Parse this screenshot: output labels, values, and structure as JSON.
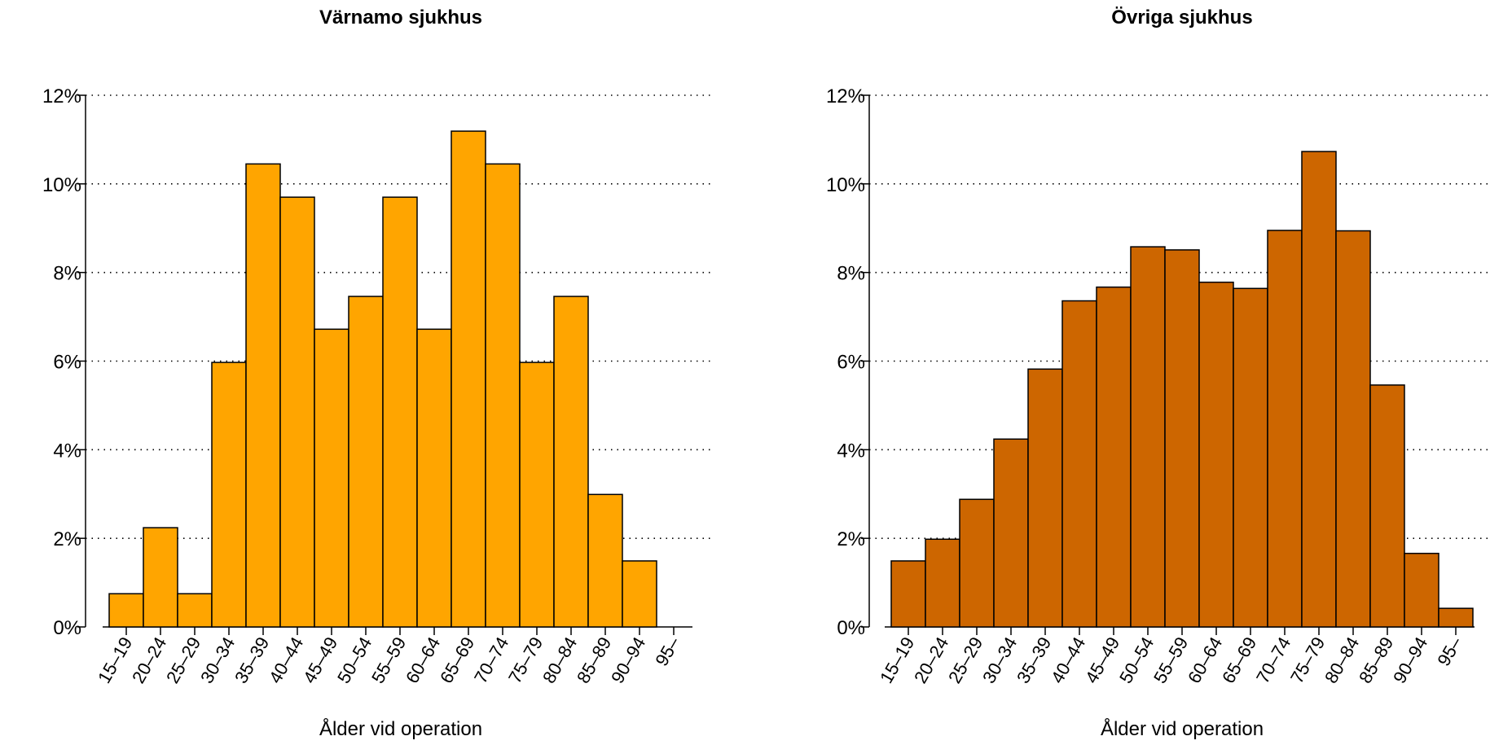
{
  "chart_data": [
    {
      "type": "bar",
      "title": "Värnamo sjukhus",
      "xlabel": "Ålder vid operation",
      "ylabel": "",
      "categories": [
        "15–19",
        "20–24",
        "25–29",
        "30–34",
        "35–39",
        "40–44",
        "45–49",
        "50–54",
        "55–59",
        "60–64",
        "65–69",
        "70–74",
        "75–79",
        "80–84",
        "85–89",
        "90–94",
        "95–"
      ],
      "values": [
        0.75,
        2.24,
        0.75,
        5.97,
        10.45,
        9.7,
        6.72,
        7.46,
        9.7,
        6.72,
        11.19,
        10.45,
        5.97,
        7.46,
        2.99,
        1.49,
        0.0
      ],
      "ylim": [
        0,
        12
      ],
      "yticks": [
        0,
        2,
        4,
        6,
        8,
        10,
        12
      ],
      "ytick_labels": [
        "0%",
        "2%",
        "4%",
        "6%",
        "8%",
        "10%",
        "12%"
      ],
      "grid": "horizontal dotted",
      "bar_color": "#FFA500"
    },
    {
      "type": "bar",
      "title": "Övriga sjukhus",
      "xlabel": "Ålder vid operation",
      "ylabel": "",
      "categories": [
        "15–19",
        "20–24",
        "25–29",
        "30–34",
        "35–39",
        "40–44",
        "45–49",
        "50–54",
        "55–59",
        "60–64",
        "65–69",
        "70–74",
        "75–79",
        "80–84",
        "85–89",
        "90–94",
        "95–"
      ],
      "values": [
        1.49,
        1.98,
        2.88,
        4.24,
        5.82,
        7.36,
        7.67,
        8.58,
        8.51,
        7.78,
        7.64,
        8.95,
        10.73,
        8.94,
        5.46,
        1.66,
        0.42
      ],
      "ylim": [
        0,
        12
      ],
      "yticks": [
        0,
        2,
        4,
        6,
        8,
        10,
        12
      ],
      "ytick_labels": [
        "0%",
        "2%",
        "4%",
        "6%",
        "8%",
        "10%",
        "12%"
      ],
      "grid": "horizontal dotted",
      "bar_color": "#CD6600"
    }
  ]
}
